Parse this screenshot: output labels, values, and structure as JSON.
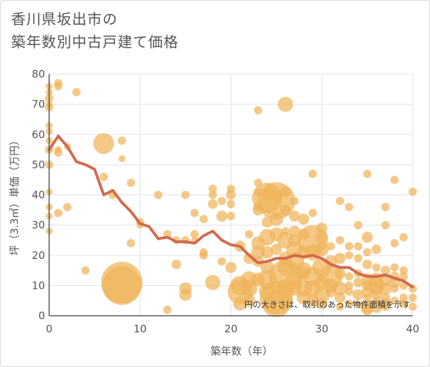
{
  "chart_data": {
    "type": "scatter",
    "title": "香川県坂出市の",
    "subtitle": "築年数別中古戸建て価格",
    "xlabel": "築年数（年）",
    "ylabel": "坪（3.3㎡）単価（万円）",
    "xlim": [
      0,
      40
    ],
    "ylim": [
      0,
      80
    ],
    "xticks": [
      0,
      10,
      20,
      30,
      40
    ],
    "yticks": [
      0,
      10,
      20,
      30,
      40,
      50,
      60,
      70,
      80
    ],
    "grid": true,
    "annotation": "円の大きさは、取引のあった物件面積を示す",
    "colors": {
      "bubble": "#f0b45a",
      "line": "#d26a4e",
      "grid": "#dde3ea",
      "axis": "#555555"
    },
    "line": {
      "x": [
        0,
        1,
        2,
        3,
        4,
        5,
        6,
        7,
        8,
        9,
        10,
        11,
        12,
        13,
        14,
        15,
        16,
        17,
        18,
        19,
        20,
        21,
        22,
        23,
        24,
        25,
        26,
        27,
        28,
        29,
        30,
        31,
        32,
        33,
        34,
        35,
        36,
        37,
        38,
        39,
        40
      ],
      "y": [
        55,
        59.5,
        56,
        51,
        50,
        48.5,
        40,
        41.5,
        37.5,
        34.5,
        30.5,
        29.5,
        25.5,
        26,
        24.5,
        24.5,
        24,
        26.5,
        28,
        25,
        23.5,
        23,
        20,
        17.5,
        18,
        19,
        19,
        20,
        19.5,
        20,
        19,
        17,
        16,
        16,
        14,
        13,
        13,
        13.5,
        12.5,
        11.5,
        9.5
      ]
    },
    "points": [
      [
        0,
        76,
        5
      ],
      [
        0,
        74,
        5
      ],
      [
        0,
        72,
        6
      ],
      [
        0,
        70,
        5
      ],
      [
        0,
        69,
        6
      ],
      [
        0,
        63,
        5
      ],
      [
        0,
        61,
        5
      ],
      [
        0,
        58,
        5
      ],
      [
        0,
        55,
        6
      ],
      [
        0,
        50,
        6
      ],
      [
        0,
        41,
        5
      ],
      [
        0,
        36,
        5
      ],
      [
        0,
        33,
        5
      ],
      [
        0,
        28,
        5
      ],
      [
        1,
        77,
        6
      ],
      [
        1,
        76,
        6
      ],
      [
        1,
        55,
        5
      ],
      [
        1,
        54,
        6
      ],
      [
        1,
        34,
        6
      ],
      [
        2,
        36,
        6
      ],
      [
        2,
        56,
        5
      ],
      [
        3,
        74,
        6
      ],
      [
        4,
        15,
        6
      ],
      [
        6,
        57,
        15
      ],
      [
        6,
        46,
        6
      ],
      [
        7,
        40,
        6
      ],
      [
        8,
        11,
        30
      ],
      [
        8,
        10,
        28
      ],
      [
        8,
        58,
        6
      ],
      [
        8,
        52,
        5
      ],
      [
        9,
        44,
        6
      ],
      [
        9,
        24,
        6
      ],
      [
        10,
        31,
        6
      ],
      [
        10,
        30,
        5
      ],
      [
        12,
        40,
        6
      ],
      [
        13,
        27,
        6
      ],
      [
        13,
        2,
        6
      ],
      [
        14,
        25,
        6
      ],
      [
        14,
        17,
        7
      ],
      [
        15,
        40,
        6
      ],
      [
        15,
        25,
        6
      ],
      [
        15,
        9,
        9
      ],
      [
        15,
        7,
        9
      ],
      [
        16,
        34,
        6
      ],
      [
        16,
        27,
        6
      ],
      [
        16,
        25,
        5
      ],
      [
        17,
        32,
        6
      ],
      [
        17,
        21,
        6
      ],
      [
        17,
        20,
        6
      ],
      [
        18,
        42,
        6
      ],
      [
        18,
        40,
        6
      ],
      [
        18,
        37,
        7
      ],
      [
        18,
        11,
        11
      ],
      [
        19,
        38,
        6
      ],
      [
        19,
        33,
        8
      ],
      [
        19,
        18,
        6
      ],
      [
        20,
        42,
        6
      ],
      [
        20,
        40,
        7
      ],
      [
        20,
        37,
        6
      ],
      [
        20,
        33,
        6
      ],
      [
        20,
        16,
        8
      ],
      [
        21,
        23,
        8
      ],
      [
        21,
        10,
        14
      ],
      [
        21,
        8,
        18
      ],
      [
        21,
        4,
        10
      ],
      [
        22,
        27,
        6
      ],
      [
        22,
        19,
        8
      ],
      [
        22,
        12,
        12
      ],
      [
        22,
        9,
        12
      ],
      [
        22,
        5,
        9
      ],
      [
        23,
        68,
        6
      ],
      [
        23,
        44,
        6
      ],
      [
        23,
        41,
        6
      ],
      [
        23,
        36,
        7
      ],
      [
        23,
        35,
        8
      ],
      [
        23,
        24,
        10
      ],
      [
        23,
        21,
        10
      ],
      [
        23,
        18,
        8
      ],
      [
        23,
        12,
        10
      ],
      [
        24,
        40,
        8
      ],
      [
        24,
        39,
        22
      ],
      [
        24,
        31,
        8
      ],
      [
        24,
        26,
        12
      ],
      [
        24,
        21,
        9
      ],
      [
        24,
        16,
        10
      ],
      [
        24,
        12,
        14
      ],
      [
        24,
        8,
        12
      ],
      [
        25,
        40,
        8
      ],
      [
        25,
        38,
        27
      ],
      [
        25,
        32,
        10
      ],
      [
        25,
        27,
        10
      ],
      [
        25,
        22,
        8
      ],
      [
        25,
        6,
        24
      ],
      [
        25,
        4,
        20
      ],
      [
        26,
        70,
        11
      ],
      [
        26,
        41,
        8
      ],
      [
        26,
        35,
        8
      ],
      [
        26,
        28,
        6
      ],
      [
        26,
        25,
        12
      ],
      [
        26,
        19,
        10
      ],
      [
        26,
        16,
        12
      ],
      [
        26,
        13,
        24
      ],
      [
        26,
        9,
        14
      ],
      [
        26,
        5,
        10
      ],
      [
        27,
        38,
        6
      ],
      [
        27,
        33,
        8
      ],
      [
        27,
        28,
        8
      ],
      [
        27,
        25,
        9
      ],
      [
        27,
        22,
        12
      ],
      [
        27,
        18,
        14
      ],
      [
        27,
        12,
        12
      ],
      [
        27,
        9,
        10
      ],
      [
        28,
        32,
        8
      ],
      [
        28,
        27,
        8
      ],
      [
        28,
        21,
        10
      ],
      [
        28,
        15,
        12
      ],
      [
        28,
        14,
        9
      ],
      [
        28,
        9,
        12
      ],
      [
        28,
        6,
        10
      ],
      [
        29,
        47,
        6
      ],
      [
        29,
        34,
        6
      ],
      [
        29,
        25,
        22
      ],
      [
        29,
        21,
        12
      ],
      [
        29,
        13,
        14
      ],
      [
        29,
        9,
        12
      ],
      [
        29,
        5,
        9
      ],
      [
        30,
        29,
        8
      ],
      [
        30,
        26,
        9
      ],
      [
        30,
        22,
        10
      ],
      [
        30,
        16,
        14
      ],
      [
        30,
        11,
        10
      ],
      [
        30,
        7,
        12
      ],
      [
        30,
        4,
        8
      ],
      [
        31,
        23,
        6
      ],
      [
        31,
        18,
        9
      ],
      [
        31,
        13,
        17
      ],
      [
        31,
        10,
        10
      ],
      [
        31,
        8,
        8
      ],
      [
        32,
        38,
        6
      ],
      [
        32,
        25,
        6
      ],
      [
        32,
        19,
        8
      ],
      [
        32,
        14,
        8
      ],
      [
        32,
        9,
        10
      ],
      [
        32,
        6,
        8
      ],
      [
        32,
        3,
        6
      ],
      [
        33,
        36,
        6
      ],
      [
        33,
        23,
        6
      ],
      [
        33,
        20,
        6
      ],
      [
        33,
        13,
        6
      ],
      [
        33,
        10,
        6
      ],
      [
        33,
        8,
        6
      ],
      [
        33,
        4,
        6
      ],
      [
        34,
        30,
        6
      ],
      [
        34,
        23,
        6
      ],
      [
        34,
        19,
        6
      ],
      [
        34,
        14,
        6
      ],
      [
        34,
        11,
        7
      ],
      [
        34,
        7,
        8
      ],
      [
        34,
        4,
        5
      ],
      [
        35,
        47,
        6
      ],
      [
        35,
        26,
        8
      ],
      [
        35,
        21,
        6
      ],
      [
        35,
        17,
        7
      ],
      [
        35,
        12,
        9
      ],
      [
        35,
        10,
        8
      ],
      [
        35,
        8,
        8
      ],
      [
        35,
        6,
        6
      ],
      [
        35,
        3,
        10
      ],
      [
        35,
        2,
        8
      ],
      [
        36,
        22,
        7
      ],
      [
        36,
        16,
        6
      ],
      [
        36,
        12,
        10
      ],
      [
        36,
        10,
        12
      ],
      [
        36,
        9,
        10
      ],
      [
        36,
        7,
        8
      ],
      [
        36,
        5,
        6
      ],
      [
        36,
        3,
        9
      ],
      [
        37,
        36,
        6
      ],
      [
        37,
        30,
        6
      ],
      [
        37,
        15,
        7
      ],
      [
        37,
        12,
        9
      ],
      [
        37,
        9,
        9
      ],
      [
        37,
        6,
        7
      ],
      [
        37,
        4,
        8
      ],
      [
        37,
        3,
        6
      ],
      [
        38,
        45,
        6
      ],
      [
        38,
        24,
        6
      ],
      [
        38,
        16,
        6
      ],
      [
        38,
        13,
        7
      ],
      [
        38,
        11,
        8
      ],
      [
        38,
        9,
        6
      ],
      [
        38,
        5,
        6
      ],
      [
        39,
        26,
        6
      ],
      [
        39,
        15,
        6
      ],
      [
        39,
        13,
        6
      ],
      [
        39,
        10,
        6
      ],
      [
        39,
        6,
        6
      ],
      [
        39,
        4,
        6
      ],
      [
        40,
        41,
        6
      ],
      [
        40,
        9,
        6
      ],
      [
        40,
        6,
        6
      ],
      [
        40,
        3,
        6
      ]
    ]
  }
}
